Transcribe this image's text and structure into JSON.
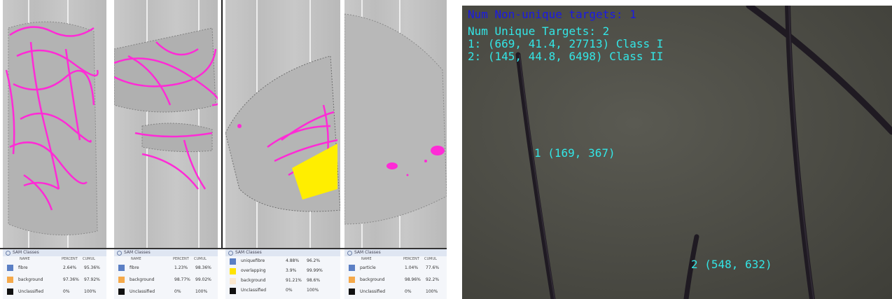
{
  "overlay": {
    "non_unique": "Num Non-unique targets: 1",
    "unique": "Num Unique Targets: 2",
    "line1": "1: (669, 41.4, 27713) Class I",
    "line2": "2: (145, 44.8, 6498) Class II",
    "label1": "1 (169, 367)",
    "label2": "2 (548, 632)"
  },
  "colors": {
    "non_unique_text": "#1a1ae6",
    "overlay_text": "#33e6e6",
    "fibre_magenta": "#ff2bd6",
    "overlap_yellow": "#ffee00"
  },
  "sam_panels": [
    {
      "title": "SAM Classes",
      "cols": [
        "NAME",
        "PERCENT",
        "CUMUL"
      ],
      "rows": [
        {
          "name": "fibre",
          "p": "2.64%",
          "c": "95.36%",
          "color": "#5b7fc4"
        },
        {
          "name": "background",
          "p": "97.36%",
          "c": "97.92%",
          "color": "#f5a94a"
        },
        {
          "name": "Unclassified",
          "p": "0%",
          "c": "100%",
          "color": "#111111"
        }
      ]
    },
    {
      "title": "SAM Classes",
      "cols": [
        "NAME",
        "PERCENT",
        "CUMUL"
      ],
      "rows": [
        {
          "name": "fibre",
          "p": "1.23%",
          "c": "98.36%",
          "color": "#5b7fc4"
        },
        {
          "name": "background",
          "p": "98.77%",
          "c": "99.02%",
          "color": "#f5a94a"
        },
        {
          "name": "Unclassified",
          "p": "0%",
          "c": "100%",
          "color": "#111111"
        }
      ]
    },
    {
      "title": "SAM Classes",
      "cols": [
        "NAME",
        "PERCENT",
        "CUMUL"
      ],
      "rows": [
        {
          "name": "uniquefibre",
          "p": "4.88%",
          "c": "96.2%",
          "color": "#5b7fc4"
        },
        {
          "name": "overlapping",
          "p": "3.9%",
          "c": "99.99%",
          "color": "#ffe300"
        },
        {
          "name": "background",
          "p": "91.21%",
          "c": "98.6%",
          "color": "#fbe8cf"
        },
        {
          "name": "Unclassified",
          "p": "0%",
          "c": "100%",
          "color": "#111111"
        }
      ]
    },
    {
      "title": "SAM Classes",
      "cols": [
        "NAME",
        "PERCENT",
        "CUMUL"
      ],
      "rows": [
        {
          "name": "particle",
          "p": "1.04%",
          "c": "77.6%",
          "color": "#5b7fc4"
        },
        {
          "name": "background",
          "p": "98.96%",
          "c": "92.2%",
          "color": "#f5a94a"
        },
        {
          "name": "Unclassified",
          "p": "0%",
          "c": "100%",
          "color": "#111111"
        }
      ]
    }
  ]
}
